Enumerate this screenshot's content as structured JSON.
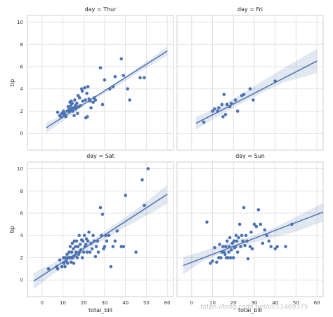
{
  "chart_data": {
    "type": "scatter",
    "layout": "2x2 facet grid",
    "xlabel": "total_bill",
    "ylabel": "tip",
    "xlim": [
      -7,
      63
    ],
    "ylim": [
      -1.5,
      10.6
    ],
    "xticks": [
      0,
      10,
      20,
      30,
      40,
      50,
      60
    ],
    "yticks": [
      0,
      2,
      4,
      6,
      8,
      10
    ],
    "grid": true,
    "fit": "linear regression with confidence band",
    "colors": {
      "points": "#4c72b0",
      "line": "#4c72b0",
      "band": "#4c72b0",
      "grid": "#e2e2e2"
    },
    "panels": [
      {
        "title": "day = Thur",
        "fit_line": {
          "x": [
            2,
            60
          ],
          "y": [
            0.5,
            7.4
          ]
        },
        "band": {
          "x": [
            2,
            12,
            18,
            25,
            35,
            45,
            60
          ],
          "upper": [
            0.98,
            1.78,
            2.44,
            3.23,
            4.49,
            5.79,
            7.81
          ],
          "lower": [
            0.02,
            1.38,
            2.22,
            3.07,
            4.11,
            5.33,
            6.99
          ]
        },
        "points": [
          [
            7.5,
            1.9
          ],
          [
            8.5,
            1.6
          ],
          [
            9,
            1.5
          ],
          [
            9.5,
            1.8
          ],
          [
            10.3,
            1.7
          ],
          [
            10.3,
            2
          ],
          [
            10.7,
            1.8
          ],
          [
            11,
            1.7
          ],
          [
            11.4,
            1.5
          ],
          [
            12,
            2
          ],
          [
            12.2,
            2
          ],
          [
            12.5,
            2.4
          ],
          [
            12.7,
            2
          ],
          [
            13,
            2
          ],
          [
            13.1,
            2.2
          ],
          [
            13.4,
            2.8
          ],
          [
            13.5,
            2
          ],
          [
            13.8,
            2.5
          ],
          [
            14,
            2.2
          ],
          [
            14,
            2.9
          ],
          [
            14.5,
            2.7
          ],
          [
            14.8,
            2
          ],
          [
            15,
            2.3
          ],
          [
            15.4,
            1.6
          ],
          [
            15.7,
            3
          ],
          [
            16,
            2.5
          ],
          [
            16.2,
            2.2
          ],
          [
            16.4,
            2.3
          ],
          [
            16.7,
            2.7
          ],
          [
            17,
            1.8
          ],
          [
            17.3,
            3.4
          ],
          [
            17.6,
            2.4
          ],
          [
            18,
            3.2
          ],
          [
            18.5,
            2.5
          ],
          [
            19,
            4
          ],
          [
            19.3,
            3.8
          ],
          [
            19.5,
            2.9
          ],
          [
            20.5,
            4.1
          ],
          [
            20.8,
            3
          ],
          [
            21,
            1.4
          ],
          [
            21.5,
            3.6
          ],
          [
            21.7,
            1.5
          ],
          [
            22,
            4.2
          ],
          [
            22.5,
            3.1
          ],
          [
            23,
            2.9
          ],
          [
            23.5,
            2.3
          ],
          [
            24.5,
            2.8
          ],
          [
            25,
            3.2
          ],
          [
            25.6,
            3
          ],
          [
            28,
            5.9
          ],
          [
            29,
            2.6
          ],
          [
            30,
            4.8
          ],
          [
            32.5,
            4
          ],
          [
            34,
            4.2
          ],
          [
            35,
            5.1
          ],
          [
            38,
            6.7
          ],
          [
            39,
            5.2
          ],
          [
            41,
            4
          ],
          [
            42,
            3
          ],
          [
            47,
            5
          ],
          [
            49,
            5
          ]
        ]
      },
      {
        "title": "day = Fri",
        "fit_line": {
          "x": [
            2,
            60
          ],
          "y": [
            0.9,
            6.5
          ]
        },
        "band": {
          "x": [
            2,
            10,
            17,
            25,
            35,
            45,
            60
          ],
          "upper": [
            1.49,
            2.12,
            2.8,
            3.66,
            4.83,
            5.96,
            7.59
          ],
          "lower": [
            0.31,
            1.24,
            2.0,
            2.8,
            3.77,
            4.64,
            5.41
          ]
        },
        "points": [
          [
            5.8,
            1
          ],
          [
            10,
            2
          ],
          [
            11,
            2.2
          ],
          [
            12.5,
            2
          ],
          [
            13,
            2.3
          ],
          [
            14.5,
            2.6
          ],
          [
            15,
            1.5
          ],
          [
            15.5,
            3.5
          ],
          [
            16.2,
            1.7
          ],
          [
            17,
            2.6
          ],
          [
            18.3,
            2.4
          ],
          [
            19,
            2.7
          ],
          [
            21,
            3
          ],
          [
            22,
            2
          ],
          [
            24,
            3.4
          ],
          [
            25,
            3.5
          ],
          [
            28,
            4
          ],
          [
            29.5,
            3
          ],
          [
            40,
            4.7
          ]
        ]
      },
      {
        "title": "day = Sat",
        "fit_line": {
          "x": [
            -4,
            60
          ],
          "y": [
            -0.1,
            7.7
          ]
        },
        "band": {
          "x": [
            -4,
            5,
            12,
            20,
            30,
            40,
            50,
            60
          ],
          "upper": [
            0.64,
            1.5,
            2.24,
            3.09,
            4.36,
            5.64,
            7.02,
            8.55
          ],
          "lower": [
            -0.84,
            0.5,
            1.36,
            2.51,
            3.64,
            4.76,
            5.78,
            6.85
          ]
        },
        "points": [
          [
            3.1,
            1
          ],
          [
            7,
            1.2
          ],
          [
            7.5,
            1
          ],
          [
            8.5,
            1.8
          ],
          [
            9.5,
            1.2
          ],
          [
            10.3,
            2
          ],
          [
            10.5,
            1.5
          ],
          [
            11,
            1.2
          ],
          [
            11.3,
            2
          ],
          [
            11.6,
            1.7
          ],
          [
            12,
            2.3
          ],
          [
            12.3,
            1.5
          ],
          [
            12.6,
            2
          ],
          [
            13,
            2.5
          ],
          [
            13.3,
            2
          ],
          [
            13.5,
            3
          ],
          [
            13.8,
            2
          ],
          [
            14,
            1.6
          ],
          [
            14.2,
            2.5
          ],
          [
            14.5,
            3.3
          ],
          [
            14.8,
            2
          ],
          [
            15,
            2.8
          ],
          [
            15.2,
            1.5
          ],
          [
            15.5,
            3.5
          ],
          [
            15.8,
            2.2
          ],
          [
            16,
            3
          ],
          [
            16.3,
            2.5
          ],
          [
            16.6,
            3.5
          ],
          [
            16.9,
            2
          ],
          [
            17.2,
            3
          ],
          [
            17.5,
            2.3
          ],
          [
            17.8,
            4
          ],
          [
            18,
            2.5
          ],
          [
            18.3,
            3.2
          ],
          [
            18.6,
            2.7
          ],
          [
            19,
            3.6
          ],
          [
            19.3,
            2
          ],
          [
            19.6,
            3.5
          ],
          [
            20,
            2.5
          ],
          [
            20.3,
            4
          ],
          [
            20.6,
            3
          ],
          [
            21,
            3.2
          ],
          [
            21.3,
            3.7
          ],
          [
            21.6,
            2.5
          ],
          [
            22,
            3.5
          ],
          [
            22.5,
            4.3
          ],
          [
            23,
            2.5
          ],
          [
            23.5,
            3.3
          ],
          [
            24,
            2.8
          ],
          [
            24.5,
            4
          ],
          [
            25,
            3.5
          ],
          [
            25.6,
            2.1
          ],
          [
            26,
            3
          ],
          [
            26.6,
            3.5
          ],
          [
            27,
            2.5
          ],
          [
            28,
            6.5
          ],
          [
            28.5,
            4
          ],
          [
            29,
            5.9
          ],
          [
            29.5,
            2.8
          ],
          [
            30,
            3
          ],
          [
            30.5,
            4
          ],
          [
            31,
            3.5
          ],
          [
            32,
            4
          ],
          [
            33,
            1.2
          ],
          [
            34,
            3
          ],
          [
            35,
            3.5
          ],
          [
            36,
            4.4
          ],
          [
            38,
            3
          ],
          [
            39,
            3
          ],
          [
            40,
            7.6
          ],
          [
            45,
            2.5
          ],
          [
            48,
            9
          ],
          [
            49,
            6.7
          ],
          [
            50.8,
            10
          ]
        ]
      },
      {
        "title": "day = Sun",
        "fit_line": {
          "x": [
            -4,
            63
          ],
          "y": [
            1.3,
            6.1
          ]
        },
        "band": {
          "x": [
            -4,
            5,
            12,
            20,
            30,
            40,
            50,
            63
          ],
          "upper": [
            2.08,
            2.56,
            3.01,
            3.47,
            4.02,
            4.74,
            5.66,
            6.94
          ],
          "lower": [
            0.52,
            1.64,
            2.19,
            2.73,
            3.38,
            3.86,
            4.34,
            5.26
          ]
        },
        "points": [
          [
            7.3,
            5.2
          ],
          [
            9,
            1.5
          ],
          [
            10,
            1.7
          ],
          [
            11,
            2.9
          ],
          [
            12,
            1.6
          ],
          [
            13,
            2
          ],
          [
            13.4,
            3.2
          ],
          [
            14,
            2
          ],
          [
            14.5,
            2.5
          ],
          [
            15,
            3
          ],
          [
            15.5,
            2.5
          ],
          [
            16,
            2.3
          ],
          [
            16.3,
            3
          ],
          [
            16.6,
            2
          ],
          [
            17,
            3.5
          ],
          [
            17.4,
            2
          ],
          [
            17.8,
            2.5
          ],
          [
            18,
            3
          ],
          [
            18.3,
            3.8
          ],
          [
            18.6,
            2
          ],
          [
            19,
            2.7
          ],
          [
            19.5,
            3.3
          ],
          [
            20,
            2
          ],
          [
            20.3,
            3.5
          ],
          [
            20.6,
            2.9
          ],
          [
            21,
            3
          ],
          [
            21.3,
            4
          ],
          [
            21.6,
            3.5
          ],
          [
            22,
            2.5
          ],
          [
            22.5,
            3.8
          ],
          [
            23,
            5
          ],
          [
            23.5,
            3
          ],
          [
            24,
            4
          ],
          [
            24.5,
            3.5
          ],
          [
            25,
            6.5
          ],
          [
            25.5,
            3.1
          ],
          [
            26,
            4
          ],
          [
            26.5,
            3.5
          ],
          [
            27,
            1.9
          ],
          [
            28,
            3
          ],
          [
            28.5,
            4.3
          ],
          [
            29,
            2.8
          ],
          [
            30,
            5
          ],
          [
            31,
            4.8
          ],
          [
            32,
            6.3
          ],
          [
            33,
            5
          ],
          [
            34,
            3.3
          ],
          [
            35,
            4.5
          ],
          [
            36,
            4
          ],
          [
            37,
            3.5
          ],
          [
            38,
            3
          ],
          [
            40,
            2.8
          ],
          [
            41,
            3
          ],
          [
            45,
            3
          ],
          [
            48,
            5
          ]
        ]
      }
    ]
  },
  "watermark": "https://blog.csdn.net/u011469375"
}
